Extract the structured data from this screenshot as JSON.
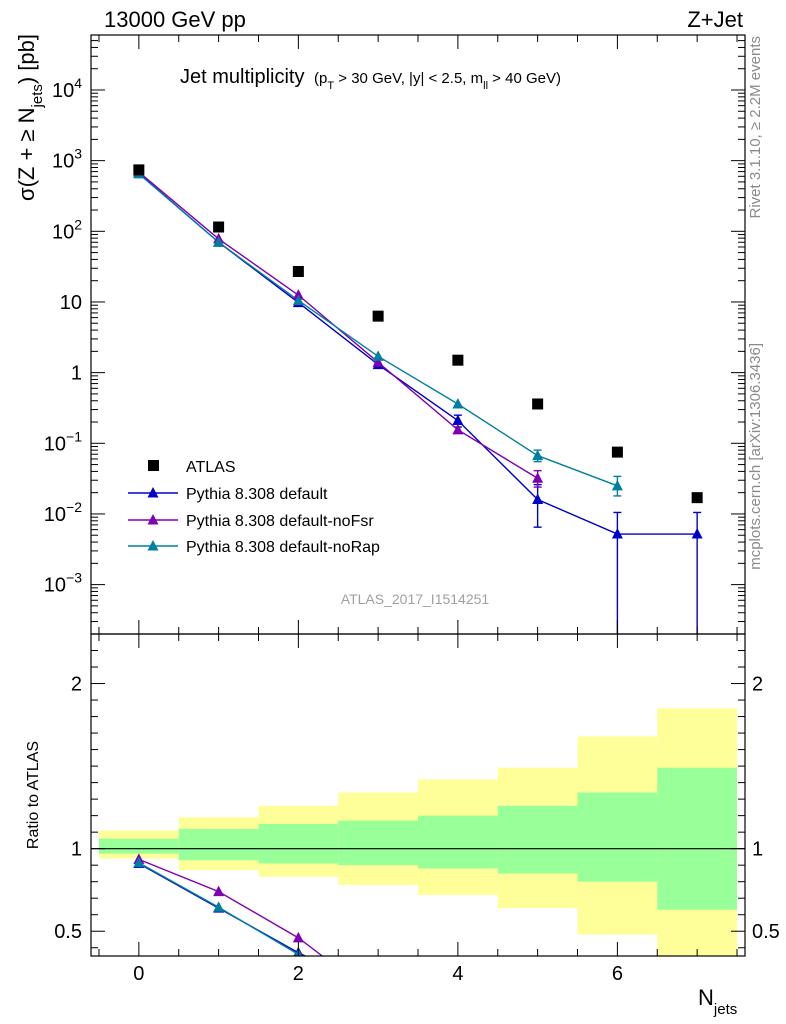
{
  "header": {
    "left": "13000 GeV pp",
    "right": "Z+Jet"
  },
  "side": {
    "rivet": "Rivet 3.1.10, ≥ 2.2M events",
    "mcplots": "mcplots.cern.ch [arXiv:1306.3436]"
  },
  "chart_data": [
    {
      "type": "scatter",
      "title_main": "Jet multiplicity",
      "title_cuts": {
        "p": "(p",
        "T": "T",
        "mid": " > 30 GeV, |y| < 2.5, m",
        "ll": "ll",
        "end": " > 40 GeV)"
      },
      "ylabel": {
        "a": "σ(Z + ≥ N",
        "sub": "jets",
        "b": ") [pb]"
      },
      "yscale": "log",
      "ylim": [
        0.0002,
        60000
      ],
      "xlim": [
        -0.6,
        7.6
      ],
      "watermark": "ATLAS_2017_I1514251",
      "x": [
        0,
        1,
        2,
        3,
        4,
        5,
        6,
        7
      ],
      "data": {
        "name": "ATLAS",
        "color": "#000000",
        "values": [
          740,
          115,
          27,
          6.3,
          1.5,
          0.36,
          0.075,
          0.017
        ]
      },
      "series": [
        {
          "name": "Pythia 8.308 default",
          "color": "#0000cc",
          "values": [
            660,
            70,
            9.8,
            1.3,
            0.21,
            0.016,
            0.0052,
            0.0052
          ],
          "err_lo": [
            null,
            null,
            null,
            null,
            0.17,
            0.0065,
            1e-05,
            1e-05
          ],
          "err_hi": [
            null,
            null,
            null,
            null,
            0.25,
            0.026,
            0.0105,
            0.0105
          ]
        },
        {
          "name": "Pythia 8.308 default-noFsr",
          "color": "#7f00b2",
          "values": [
            690,
            78,
            12.5,
            1.4,
            0.155,
            0.032,
            null,
            null
          ],
          "err_lo": [
            null,
            null,
            null,
            null,
            null,
            0.024,
            null,
            null
          ],
          "err_hi": [
            null,
            null,
            null,
            null,
            null,
            0.041,
            null,
            null
          ]
        },
        {
          "name": "Pythia 8.308 default-noRap",
          "color": "#0080a0",
          "values": [
            650,
            70,
            10.5,
            1.7,
            0.36,
            0.067,
            0.025,
            null
          ],
          "err_lo": [
            null,
            null,
            null,
            null,
            null,
            0.055,
            0.018,
            null
          ],
          "err_hi": [
            null,
            null,
            null,
            null,
            null,
            0.08,
            0.034,
            null
          ]
        }
      ],
      "yticks": [
        {
          "v": 0.001,
          "base": "10",
          "exp": "−3"
        },
        {
          "v": 0.01,
          "base": "10",
          "exp": "−2"
        },
        {
          "v": 0.1,
          "base": "10",
          "exp": "−1"
        },
        {
          "v": 1,
          "base": "1",
          "exp": ""
        },
        {
          "v": 10,
          "base": "10",
          "exp": ""
        },
        {
          "v": 100,
          "base": "10",
          "exp": "2"
        },
        {
          "v": 1000,
          "base": "10",
          "exp": "3"
        },
        {
          "v": 10000,
          "base": "10",
          "exp": "4"
        }
      ]
    },
    {
      "type": "line",
      "ylabel": "Ratio to ATLAS",
      "xlabel_base": "N",
      "xlabel_sub": "jets",
      "ylim": [
        0.35,
        2.3
      ],
      "xlim": [
        -0.6,
        7.6
      ],
      "yticks": [
        {
          "v": 0.5,
          "label": "0.5"
        },
        {
          "v": 1,
          "label": "1"
        },
        {
          "v": 2,
          "label": "2"
        }
      ],
      "xticks": [
        {
          "v": 0,
          "label": "0"
        },
        {
          "v": 2,
          "label": "2"
        },
        {
          "v": 4,
          "label": "4"
        },
        {
          "v": 6,
          "label": "6"
        }
      ],
      "bands": {
        "edges": [
          -0.5,
          0.5,
          1.5,
          2.5,
          3.5,
          4.5,
          5.5,
          6.5,
          7.5
        ],
        "yellow": [
          [
            0.94,
            1.11
          ],
          [
            0.87,
            1.19
          ],
          [
            0.83,
            1.26
          ],
          [
            0.78,
            1.34
          ],
          [
            0.72,
            1.42
          ],
          [
            0.64,
            1.49
          ],
          [
            0.48,
            1.68
          ],
          [
            0.35,
            1.85
          ]
        ],
        "green": [
          [
            0.97,
            1.06
          ],
          [
            0.93,
            1.12
          ],
          [
            0.91,
            1.15
          ],
          [
            0.9,
            1.17
          ],
          [
            0.88,
            1.2
          ],
          [
            0.85,
            1.26
          ],
          [
            0.8,
            1.34
          ],
          [
            0.63,
            1.49
          ]
        ],
        "yellow_color": "#ffff99",
        "green_color": "#99ff99"
      },
      "series": [
        {
          "name": "Pythia 8.308 default",
          "color": "#0000cc",
          "x": [
            0,
            1,
            2,
            2.3
          ],
          "values": [
            0.91,
            0.64,
            0.37,
            0.3
          ]
        },
        {
          "name": "Pythia 8.308 default-noFsr",
          "color": "#7f00b2",
          "x": [
            0,
            1,
            2,
            2.3
          ],
          "values": [
            0.935,
            0.74,
            0.46,
            0.35
          ]
        },
        {
          "name": "Pythia 8.308 default-noRap",
          "color": "#0080a0",
          "x": [
            0,
            1,
            2,
            2.3
          ],
          "values": [
            0.915,
            0.645,
            0.36,
            0.3
          ]
        }
      ]
    }
  ]
}
